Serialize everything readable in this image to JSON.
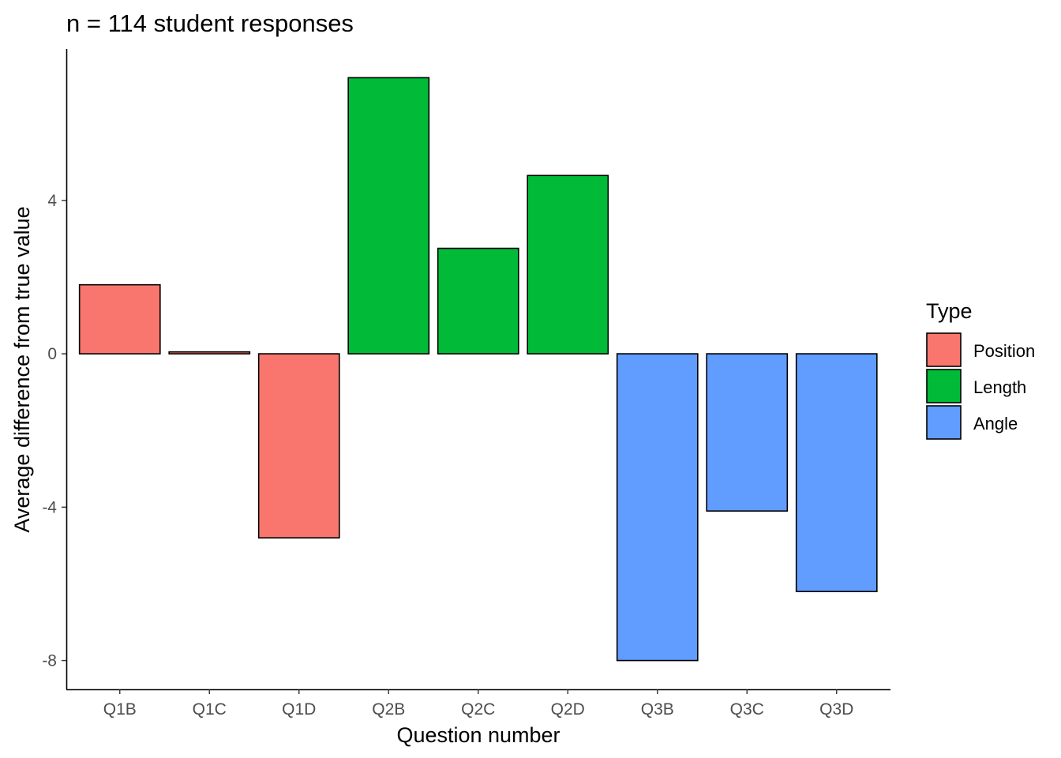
{
  "chart_data": {
    "type": "bar",
    "title": "n = 114 student responses",
    "xlabel": "Question number",
    "ylabel": "Average difference from true value",
    "categories": [
      "Q1B",
      "Q1C",
      "Q1D",
      "Q2B",
      "Q2C",
      "Q2D",
      "Q3B",
      "Q3C",
      "Q3D"
    ],
    "values": [
      1.8,
      0.05,
      -4.8,
      7.2,
      2.75,
      4.65,
      -8.0,
      -4.1,
      -6.2
    ],
    "groups": [
      "Position",
      "Position",
      "Position",
      "Length",
      "Length",
      "Length",
      "Angle",
      "Angle",
      "Angle"
    ],
    "ylim": [
      -8.75,
      7.95
    ],
    "yticks": [
      -8,
      -4,
      0,
      4
    ],
    "grid": false,
    "legend": {
      "title": "Type",
      "placement": "right",
      "entries": [
        {
          "label": "Position",
          "color": "#F8766D"
        },
        {
          "label": "Length",
          "color": "#00BA38"
        },
        {
          "label": "Angle",
          "color": "#619CFF"
        }
      ]
    }
  }
}
